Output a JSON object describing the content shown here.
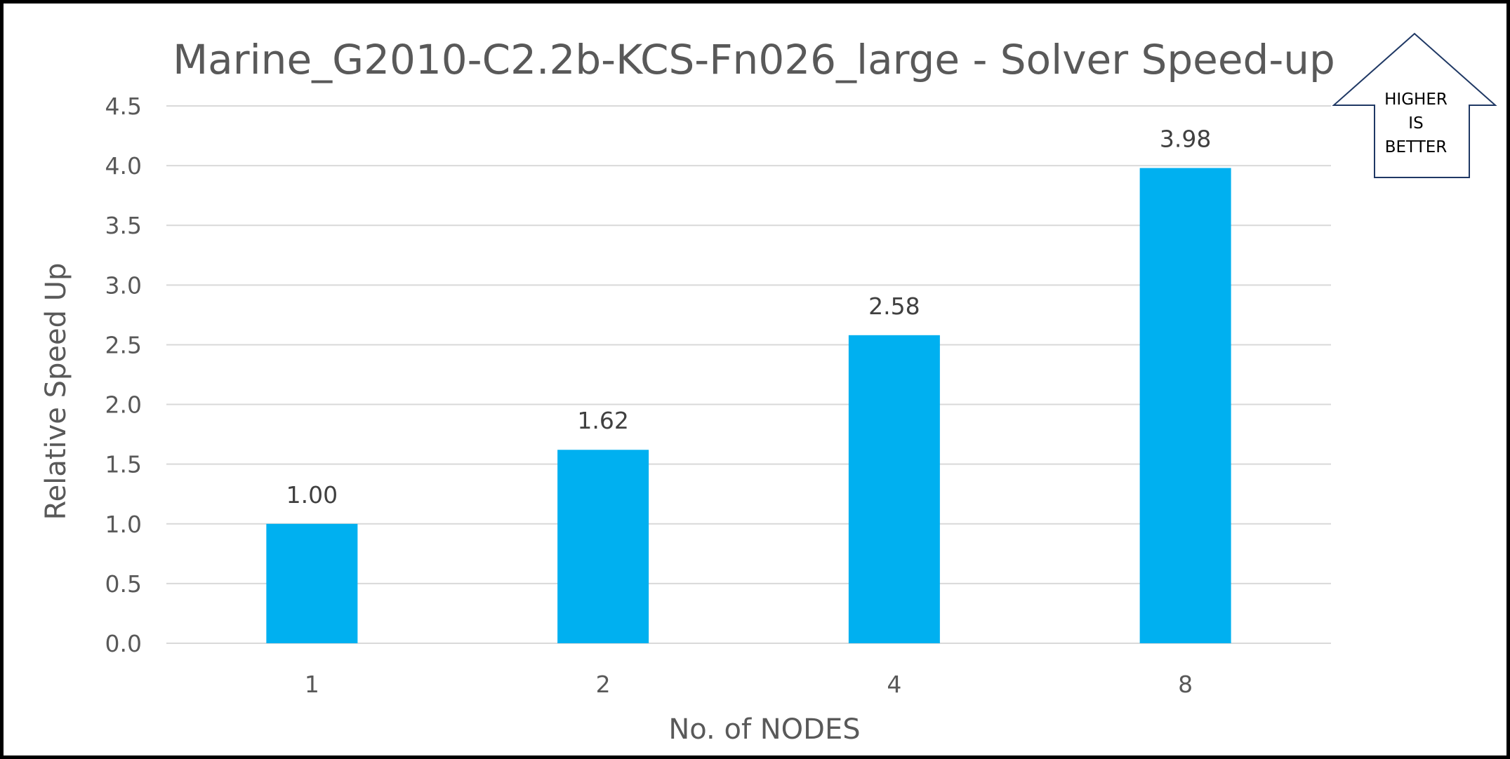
{
  "chart_data": {
    "type": "bar",
    "title": "Marine_G2010-C2.2b-KCS-Fn026_large - Solver Speed-up",
    "xlabel": "No. of NODES",
    "ylabel": "Relative Speed Up",
    "categories": [
      "1",
      "2",
      "4",
      "8"
    ],
    "values": [
      1.0,
      1.62,
      2.58,
      3.98
    ],
    "data_labels": [
      "1.00",
      "1.62",
      "2.58",
      "3.98"
    ],
    "ylim": [
      0,
      4.5
    ],
    "yticks": [
      "0.0",
      "0.5",
      "1.0",
      "1.5",
      "2.0",
      "2.5",
      "3.0",
      "3.5",
      "4.0",
      "4.5"
    ],
    "grid": true,
    "legend": "none",
    "bar_color": "#00B0F0",
    "grid_color": "#D9D9D9"
  },
  "annotation": {
    "lines": [
      "HIGHER",
      "IS",
      "BETTER"
    ]
  }
}
